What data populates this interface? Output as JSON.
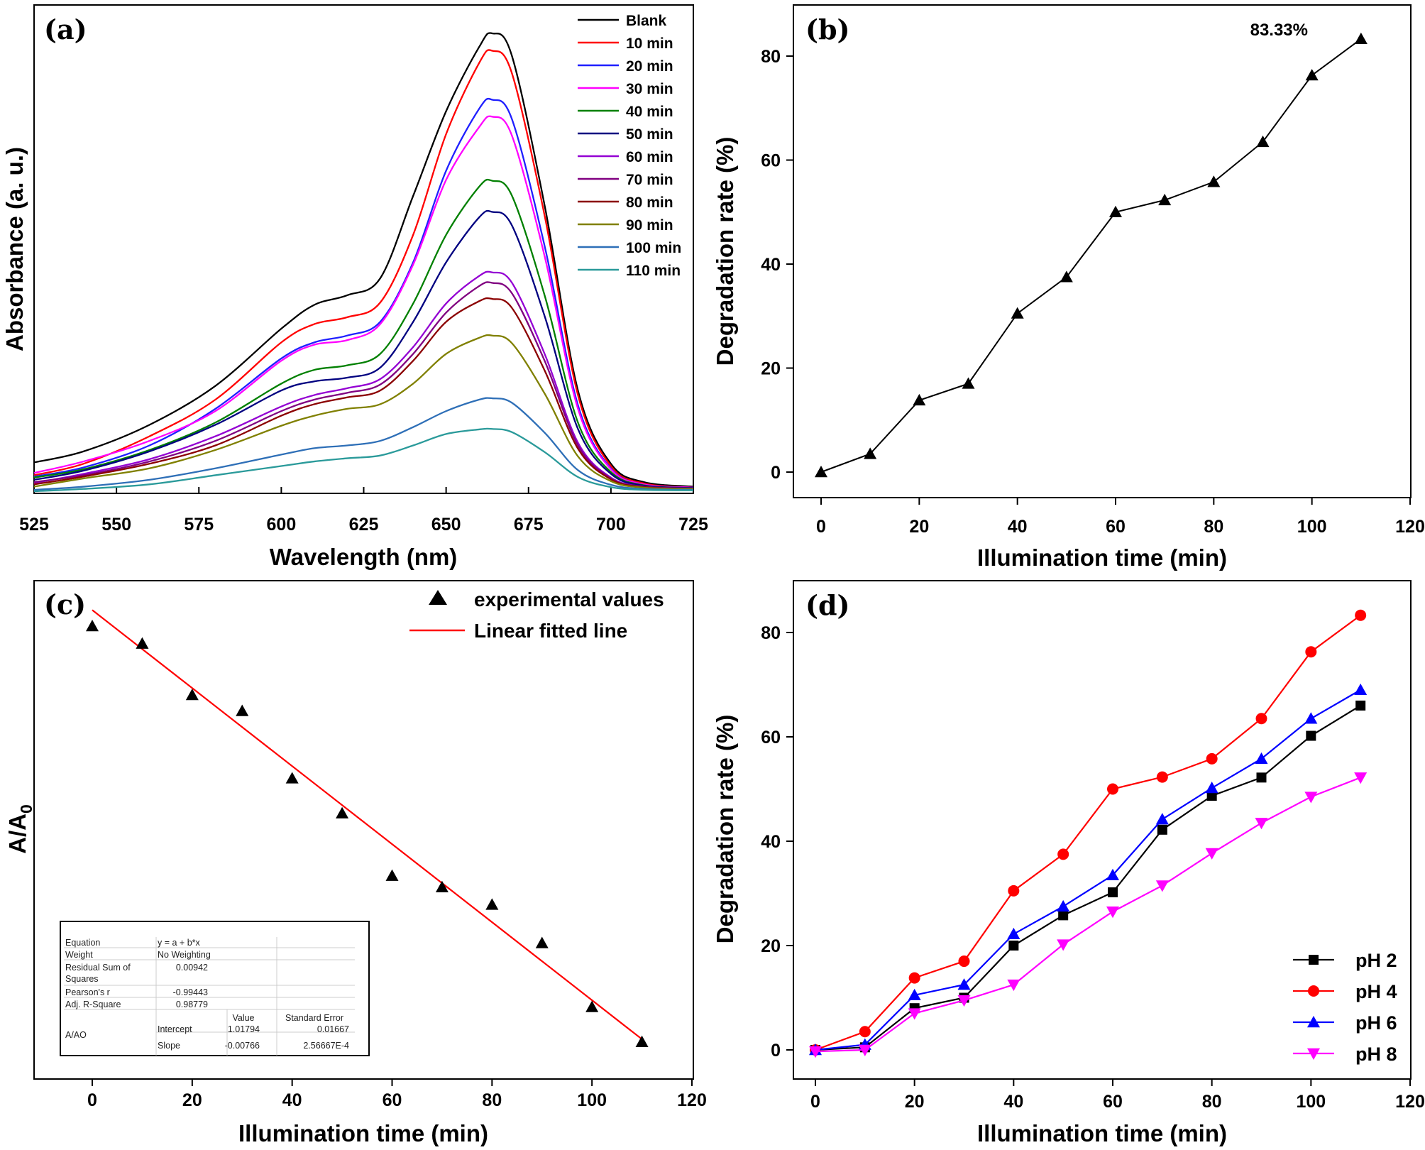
{
  "chart_data": [
    {
      "panel": "(a)",
      "type": "line",
      "xlabel": "Wavelength (nm)",
      "ylabel": "Absorbance (a. u.)",
      "xlim": [
        525,
        725
      ],
      "xticks": [
        525,
        550,
        575,
        600,
        625,
        650,
        675,
        700,
        725
      ],
      "x": [
        525,
        540,
        560,
        580,
        600,
        610,
        620,
        630,
        640,
        650,
        660,
        664,
        670,
        680,
        690,
        700,
        710,
        725
      ],
      "series": [
        {
          "name": "Blank",
          "color": "#000000",
          "values": [
            0.063,
            0.087,
            0.145,
            0.23,
            0.355,
            0.407,
            0.428,
            0.465,
            0.645,
            0.83,
            0.97,
            1.0,
            0.95,
            0.62,
            0.22,
            0.06,
            0.02,
            0.01
          ]
        },
        {
          "name": "10 min",
          "color": "#ff0000",
          "values": [
            0.035,
            0.06,
            0.12,
            0.2,
            0.325,
            0.365,
            0.38,
            0.412,
            0.56,
            0.78,
            0.935,
            0.962,
            0.912,
            0.598,
            0.21,
            0.055,
            0.017,
            0.008
          ]
        },
        {
          "name": "20 min",
          "color": "#1f1fff",
          "values": [
            0.032,
            0.052,
            0.1,
            0.18,
            0.29,
            0.325,
            0.34,
            0.37,
            0.5,
            0.7,
            0.835,
            0.855,
            0.812,
            0.532,
            0.188,
            0.05,
            0.015,
            0.008
          ]
        },
        {
          "name": "30 min",
          "color": "#ff00ff",
          "values": [
            0.04,
            0.065,
            0.11,
            0.175,
            0.285,
            0.32,
            0.33,
            0.365,
            0.495,
            0.68,
            0.795,
            0.818,
            0.776,
            0.51,
            0.18,
            0.048,
            0.015,
            0.008
          ]
        },
        {
          "name": "40 min",
          "color": "#008000",
          "values": [
            0.03,
            0.048,
            0.09,
            0.15,
            0.235,
            0.265,
            0.275,
            0.3,
            0.41,
            0.56,
            0.665,
            0.678,
            0.645,
            0.425,
            0.15,
            0.042,
            0.013,
            0.007
          ]
        },
        {
          "name": "50 min",
          "color": "#000080",
          "values": [
            0.025,
            0.045,
            0.087,
            0.145,
            0.22,
            0.24,
            0.248,
            0.27,
            0.37,
            0.5,
            0.598,
            0.61,
            0.58,
            0.38,
            0.136,
            0.038,
            0.012,
            0.007
          ]
        },
        {
          "name": "60 min",
          "color": "#9400d3",
          "values": [
            0.018,
            0.038,
            0.07,
            0.12,
            0.185,
            0.21,
            0.225,
            0.245,
            0.315,
            0.41,
            0.47,
            0.478,
            0.455,
            0.298,
            0.106,
            0.03,
            0.01,
            0.006
          ]
        },
        {
          "name": "70 min",
          "color": "#800080",
          "values": [
            0.02,
            0.035,
            0.065,
            0.11,
            0.175,
            0.2,
            0.215,
            0.233,
            0.3,
            0.39,
            0.448,
            0.455,
            0.432,
            0.283,
            0.1,
            0.028,
            0.01,
            0.006
          ]
        },
        {
          "name": "80 min",
          "color": "#8b0000",
          "values": [
            0.015,
            0.032,
            0.06,
            0.1,
            0.165,
            0.19,
            0.205,
            0.22,
            0.285,
            0.37,
            0.415,
            0.42,
            0.4,
            0.262,
            0.093,
            0.026,
            0.009,
            0.005
          ]
        },
        {
          "name": "90 min",
          "color": "#808000",
          "values": [
            0.01,
            0.028,
            0.05,
            0.09,
            0.143,
            0.165,
            0.18,
            0.19,
            0.235,
            0.3,
            0.335,
            0.34,
            0.323,
            0.212,
            0.076,
            0.022,
            0.008,
            0.005
          ]
        },
        {
          "name": "100 min",
          "color": "#2e6fb7",
          "values": [
            0.003,
            0.01,
            0.025,
            0.05,
            0.08,
            0.094,
            0.1,
            0.11,
            0.14,
            0.175,
            0.2,
            0.203,
            0.193,
            0.127,
            0.046,
            0.014,
            0.005,
            0.003
          ]
        },
        {
          "name": "110 min",
          "color": "#2a9a9a",
          "values": [
            0.0,
            0.005,
            0.015,
            0.035,
            0.055,
            0.065,
            0.072,
            0.078,
            0.1,
            0.125,
            0.135,
            0.136,
            0.129,
            0.085,
            0.031,
            0.009,
            0.003,
            0.002
          ]
        }
      ]
    },
    {
      "panel": "(b)",
      "type": "line",
      "xlabel": "Illumination time (min)",
      "ylabel": "Degradation rate (%)",
      "xlim": [
        -6,
        120
      ],
      "ylim": [
        -5,
        90
      ],
      "xticks": [
        0,
        20,
        40,
        60,
        80,
        100,
        120
      ],
      "yticks": [
        0,
        20,
        40,
        60,
        80
      ],
      "x": [
        0,
        10,
        20,
        30,
        40,
        50,
        60,
        70,
        80,
        90,
        100,
        110
      ],
      "series": [
        {
          "name": "Degradation rate",
          "values": [
            0,
            3.5,
            13.8,
            17,
            30.5,
            37.5,
            50,
            52.3,
            55.8,
            63.5,
            76.3,
            83.3
          ]
        }
      ],
      "annotation": "83.33%"
    },
    {
      "panel": "(c)",
      "type": "scatter",
      "xlabel": "Illumination time (min)",
      "ylabel_main": "A/A",
      "ylabel_sub": "0",
      "xlim": [
        -12,
        120
      ],
      "ylim": [
        0.05,
        1.08
      ],
      "xticks": [
        0,
        20,
        40,
        60,
        80,
        100,
        120
      ],
      "x": [
        0,
        10,
        20,
        30,
        40,
        50,
        60,
        70,
        80,
        90,
        100,
        110
      ],
      "series": [
        {
          "name": "experimental values",
          "values": [
            1.0,
            0.965,
            0.862,
            0.83,
            0.695,
            0.625,
            0.5,
            0.477,
            0.442,
            0.365,
            0.237,
            0.167
          ]
        },
        {
          "name": "Linear fitted line",
          "intercept": 1.01794,
          "slope": -0.00766,
          "color": "#ff0000"
        }
      ],
      "legend": [
        "experimental values",
        "Linear fitted line"
      ],
      "fit_table": {
        "labels": [
          "Equation",
          "Weight",
          "Residual Sum of",
          "Squares",
          "Pearson's r",
          "Adj. R-Square"
        ],
        "values": [
          "y = a + b*x",
          "No Weighting",
          "0.00942",
          "-0.99443",
          "0.98779"
        ],
        "col_headers": [
          "Value",
          "Standard Error"
        ],
        "row_group": "A/AO",
        "rows": [
          {
            "name": "Intercept",
            "value": "1.01794",
            "error": "0.01667"
          },
          {
            "name": "Slope",
            "value": "-0.00766",
            "error": "2.56667E-4"
          }
        ]
      }
    },
    {
      "panel": "(d)",
      "type": "line",
      "xlabel": "Illumination time (min)",
      "ylabel": "Degradation rate (%)",
      "xlim": [
        -6,
        120
      ],
      "ylim": [
        -5,
        90
      ],
      "xticks": [
        0,
        20,
        40,
        60,
        80,
        100,
        120
      ],
      "yticks": [
        0,
        20,
        40,
        60,
        80
      ],
      "x": [
        0,
        10,
        20,
        30,
        40,
        50,
        60,
        70,
        80,
        90,
        100,
        110
      ],
      "series": [
        {
          "name": "pH 2",
          "color": "#000000",
          "marker": "square",
          "values": [
            0,
            0.5,
            8,
            10,
            20,
            25.8,
            30.2,
            42.2,
            48.7,
            52.2,
            60.2,
            66
          ]
        },
        {
          "name": "pH 4",
          "color": "#ff0000",
          "marker": "circle",
          "values": [
            0,
            3.5,
            13.8,
            17,
            30.5,
            37.5,
            50,
            52.3,
            55.8,
            63.5,
            76.3,
            83.3
          ]
        },
        {
          "name": "pH 6",
          "color": "#0000ff",
          "marker": "triangle-up",
          "values": [
            0,
            1,
            10.5,
            12.5,
            22.2,
            27.5,
            33.5,
            44.2,
            50.2,
            55.8,
            63.5,
            69
          ]
        },
        {
          "name": "pH 8",
          "color": "#ff00ff",
          "marker": "triangle-down",
          "values": [
            -0.3,
            0,
            7,
            9.5,
            12.5,
            20.2,
            26.5,
            31.5,
            37.7,
            43.5,
            48.5,
            52.2
          ]
        }
      ]
    }
  ]
}
